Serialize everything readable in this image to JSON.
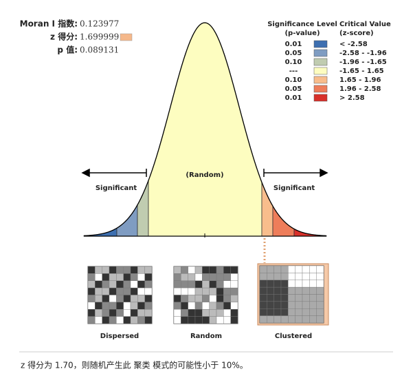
{
  "stats": [
    {
      "label": "Moran I 指数:",
      "value": "0.123977"
    },
    {
      "label": "z 得分:",
      "value": "1.699999",
      "color": "#f5b88a"
    },
    {
      "label": "p 值:",
      "value": "0.089131"
    }
  ],
  "legend": {
    "left_title": [
      "Significance Level",
      "(p-value)"
    ],
    "right_title": [
      "Critical Value",
      "(z-score)"
    ],
    "rows": [
      {
        "p": "0.01",
        "color": "#3d6fb0",
        "z": "< -2.58"
      },
      {
        "p": "0.05",
        "color": "#7f9cc2",
        "z": "-2.58 - -1.96"
      },
      {
        "p": "0.10",
        "color": "#c0ccb0",
        "z": "-1.96 - -1.65"
      },
      {
        "p": "---",
        "color": "#fdfdc0",
        "z": "-1.65 - 1.65"
      },
      {
        "p": "0.10",
        "color": "#f8bd8c",
        "z": "1.65 - 1.96"
      },
      {
        "p": "0.05",
        "color": "#ee7d5a",
        "z": "1.96 - 2.58"
      },
      {
        "p": "0.01",
        "color": "#d8302a",
        "z": "> 2.58"
      }
    ]
  },
  "curve": {
    "center": "(Random)",
    "left": "Significant",
    "right": "Significant"
  },
  "maps": [
    "Dispersed",
    "Random",
    "Clustered"
  ],
  "footer": "z 得分为 1.70，则随机产生此 聚类 模式的可能性小于 10%。"
}
